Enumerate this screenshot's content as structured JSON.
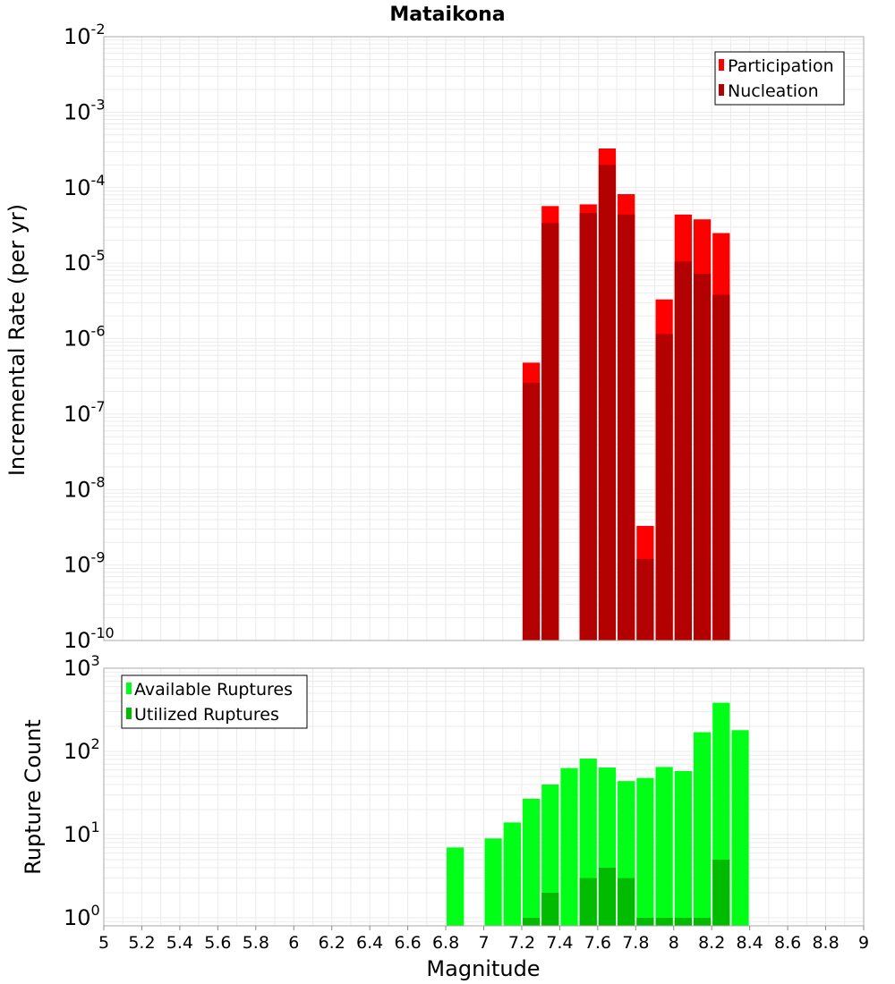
{
  "chart_data": [
    {
      "type": "bar",
      "title": "Mataikona",
      "ylabel": "Incremental Rate (per yr)",
      "xlabel": "",
      "y_scale": "log",
      "ylim": [
        1e-10,
        0.01
      ],
      "xlim": [
        5,
        9
      ],
      "grid": true,
      "legend_position": "top-right",
      "y_ticks": [
        {
          "base": "10",
          "exp": "-10"
        },
        {
          "base": "10",
          "exp": "-9"
        },
        {
          "base": "10",
          "exp": "-8"
        },
        {
          "base": "10",
          "exp": "-7"
        },
        {
          "base": "10",
          "exp": "-6"
        },
        {
          "base": "10",
          "exp": "-5"
        },
        {
          "base": "10",
          "exp": "-4"
        },
        {
          "base": "10",
          "exp": "-3"
        },
        {
          "base": "10",
          "exp": "-2"
        }
      ],
      "x": [
        7.25,
        7.35,
        7.55,
        7.65,
        7.75,
        7.85,
        7.95,
        8.05,
        8.15,
        8.25
      ],
      "series": [
        {
          "name": "Participation",
          "color": "#ff0000",
          "values": [
            4.8e-07,
            5.7e-05,
            6e-05,
            0.00033,
            8.2e-05,
            3.3e-09,
            3.3e-06,
            4.4e-05,
            3.8e-05,
            2.5e-05
          ]
        },
        {
          "name": "Nucleation",
          "color": "#b30000",
          "values": [
            2.6e-07,
            3.4e-05,
            4.6e-05,
            0.0002,
            4.4e-05,
            1.2e-09,
            1.15e-06,
            1.05e-05,
            7.2e-06,
            3.8e-06
          ]
        }
      ]
    },
    {
      "type": "bar",
      "title": "",
      "ylabel": "Rupture Count",
      "xlabel": "Magnitude",
      "y_scale": "log",
      "ylim": [
        0.8,
        1000
      ],
      "xlim": [
        5,
        9
      ],
      "grid": true,
      "legend_position": "top-left",
      "y_ticks": [
        {
          "base": "10",
          "exp": "0"
        },
        {
          "base": "10",
          "exp": "1"
        },
        {
          "base": "10",
          "exp": "2"
        },
        {
          "base": "10",
          "exp": "3"
        }
      ],
      "x_ticks": [
        "5",
        "5.2",
        "5.4",
        "5.6",
        "5.8",
        "6",
        "6.2",
        "6.4",
        "6.6",
        "6.8",
        "7",
        "7.2",
        "7.4",
        "7.6",
        "7.8",
        "8",
        "8.2",
        "8.4",
        "8.6",
        "8.8",
        "9"
      ],
      "x": [
        6.85,
        7.05,
        7.15,
        7.25,
        7.35,
        7.45,
        7.55,
        7.65,
        7.75,
        7.85,
        7.95,
        8.05,
        8.15,
        8.25,
        8.35
      ],
      "series": [
        {
          "name": "Available Ruptures",
          "color": "#00ff16",
          "values": [
            7,
            9,
            14,
            27,
            40,
            63,
            82,
            64,
            44,
            48,
            65,
            58,
            170,
            385,
            180
          ]
        },
        {
          "name": "Utilized Ruptures",
          "color": "#00bb00",
          "values": [
            null,
            null,
            null,
            1,
            2,
            null,
            3,
            4,
            3,
            1,
            1,
            1,
            1,
            5,
            null
          ]
        }
      ]
    }
  ]
}
